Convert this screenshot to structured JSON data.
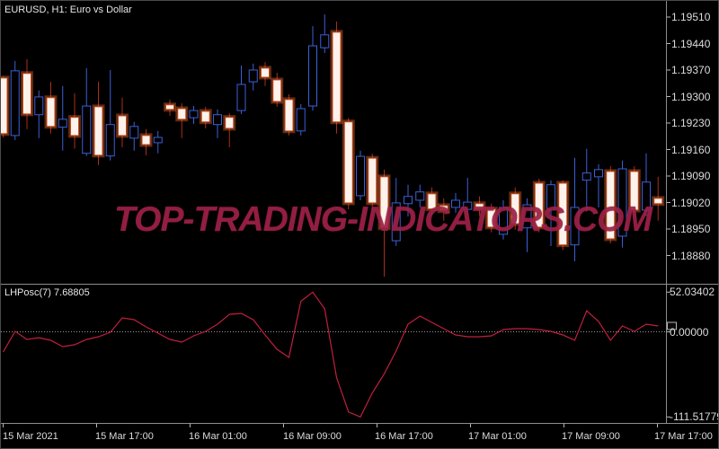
{
  "main": {
    "title": "EURUSD, H1: Euro vs Dollar"
  },
  "indicator": {
    "label": "LHPosc(7) 7.68805"
  },
  "watermark": {
    "text": "TOP-TRADING-INDICATORS.COM"
  },
  "colors": {
    "background": "#000000",
    "frame": "#8c8c8c",
    "tick": "#b5b5b5",
    "axis_text": "#dcdcdc",
    "bull": "#3c5fd6",
    "bear_fill": "#fdf3ec",
    "bear_border": "#c44a1c",
    "bear_wick": "#aa2f15",
    "bear_glow": "rgba(255,110,50,0.38)",
    "indicator_line": "#c11f3e",
    "zero_line": "#999999",
    "watermark": "#9e2147"
  },
  "chart_data": [
    {
      "type": "candlestick",
      "symbol": "EURUSD",
      "timeframe": "H1",
      "description": "Euro vs Dollar",
      "y_axis": {
        "labels": [
          "1.19510",
          "1.19440",
          "1.19370",
          "1.19300",
          "1.19230",
          "1.19160",
          "1.19090",
          "1.19020",
          "1.18950",
          "1.18880"
        ],
        "max": 1.1951,
        "min": 1.1888,
        "tick_step": 0.0007
      },
      "x_axis": {
        "labels": [
          "15 Mar 2021",
          "15 Mar 17:00",
          "16 Mar 01:00",
          "16 Mar 09:00",
          "16 Mar 17:00",
          "17 Mar 01:00",
          "17 Mar 09:00",
          "17 Mar 17:00"
        ]
      },
      "grid": false,
      "candles": [
        [
          1.19349,
          1.19353,
          1.19192,
          1.19202
        ],
        [
          1.19197,
          1.19394,
          1.19185,
          1.19368
        ],
        [
          1.19361,
          1.19399,
          1.19214,
          1.19254
        ],
        [
          1.19252,
          1.19316,
          1.1919,
          1.19299
        ],
        [
          1.19297,
          1.19339,
          1.19202,
          1.19221
        ],
        [
          1.19219,
          1.19328,
          1.19157,
          1.1924
        ],
        [
          1.19245,
          1.19309,
          1.19162,
          1.19197
        ],
        [
          1.1915,
          1.19375,
          1.19143,
          1.19275
        ],
        [
          1.19273,
          1.19339,
          1.19119,
          1.19145
        ],
        [
          1.19143,
          1.1937,
          1.19131,
          1.19226
        ],
        [
          1.19249,
          1.19297,
          1.19166,
          1.19197
        ],
        [
          1.1919,
          1.19233,
          1.19157,
          1.19221
        ],
        [
          1.19197,
          1.19214,
          1.19145,
          1.19173
        ],
        [
          1.19178,
          1.19209,
          1.1915,
          1.19192
        ],
        [
          1.19278,
          1.19292,
          1.19249,
          1.19266
        ],
        [
          1.19268,
          1.19282,
          1.1919,
          1.1924
        ],
        [
          1.19244,
          1.19275,
          1.19228,
          1.19263
        ],
        [
          1.19261,
          1.19273,
          1.19216,
          1.19233
        ],
        [
          1.19226,
          1.19266,
          1.1919,
          1.19252
        ],
        [
          1.19245,
          1.19256,
          1.19166,
          1.19216
        ],
        [
          1.19263,
          1.19382,
          1.19254,
          1.19332
        ],
        [
          1.19339,
          1.19387,
          1.19316,
          1.1937
        ],
        [
          1.19375,
          1.19391,
          1.19328,
          1.19351
        ],
        [
          1.19344,
          1.19363,
          1.19273,
          1.19287
        ],
        [
          1.19292,
          1.19306,
          1.19197,
          1.19209
        ],
        [
          1.19209,
          1.1928,
          1.19197,
          1.19268
        ],
        [
          1.19275,
          1.19486,
          1.19263,
          1.19434
        ],
        [
          1.19429,
          1.19517,
          1.19415,
          1.19463
        ],
        [
          1.1947,
          1.19498,
          1.19202,
          1.19233
        ],
        [
          1.19233,
          1.19244,
          1.19002,
          1.19019
        ],
        [
          1.19038,
          1.19157,
          1.19026,
          1.19142
        ],
        [
          1.19137,
          1.19149,
          1.19002,
          1.19019
        ],
        [
          1.19088,
          1.19107,
          1.18824,
          1.18953
        ],
        [
          1.18919,
          1.19085,
          1.18905,
          1.19019
        ],
        [
          1.19017,
          1.19067,
          1.18983,
          1.19036
        ],
        [
          1.19026,
          1.19067,
          1.19007,
          1.19048
        ],
        [
          1.19043,
          1.1906,
          1.18988,
          1.19003
        ],
        [
          1.19012,
          1.19031,
          1.18972,
          1.18998
        ],
        [
          1.19007,
          1.19045,
          1.18993,
          1.19026
        ],
        [
          1.19002,
          1.19085,
          1.18988,
          1.19021
        ],
        [
          1.19017,
          1.19036,
          1.18984,
          1.19003
        ],
        [
          1.19003,
          1.19017,
          1.18941,
          1.18955
        ],
        [
          1.18936,
          1.19026,
          1.18922,
          1.19007
        ],
        [
          1.19043,
          1.1906,
          1.18948,
          1.18964
        ],
        [
          1.18953,
          1.19031,
          1.18889,
          1.19014
        ],
        [
          1.19071,
          1.19083,
          1.18941,
          1.18955
        ],
        [
          1.19,
          1.19078,
          1.18905,
          1.19067
        ],
        [
          1.19071,
          1.19078,
          1.18894,
          1.18908
        ],
        [
          1.18908,
          1.19138,
          1.18865,
          1.19007
        ],
        [
          1.19079,
          1.19162,
          1.18996,
          1.19098
        ],
        [
          1.19088,
          1.19121,
          1.19007,
          1.19107
        ],
        [
          1.19102,
          1.19116,
          1.18912,
          1.18924
        ],
        [
          1.18931,
          1.19131,
          1.18901,
          1.19109
        ],
        [
          1.19102,
          1.19116,
          1.18984,
          1.19
        ],
        [
          1.19,
          1.1915,
          1.18984,
          1.19074
        ],
        [
          1.19031,
          1.19088,
          1.18972,
          1.19017
        ]
      ]
    },
    {
      "type": "line",
      "name": "LHPosc",
      "period": 7,
      "current_value": 7.68805,
      "y_axis": {
        "labels": [
          "52.03402",
          "0.00000",
          "-111.51779"
        ],
        "max": 52.03402,
        "zero": 0,
        "min": -111.51779
      },
      "zero_line_style": "dotted",
      "values": [
        -26.5,
        0.6,
        -10.0,
        -7.6,
        -11.2,
        -19.4,
        -17.0,
        -10.0,
        -6.5,
        -0.6,
        18.2,
        15.9,
        6.5,
        -1.8,
        -10.0,
        -13.5,
        -5.3,
        0.6,
        10.0,
        22.9,
        24.1,
        15.9,
        -4.1,
        -22.9,
        -33.5,
        40.0,
        52.03402,
        30.0,
        -60.0,
        -105.0,
        -111.51779,
        -80.0,
        -55.0,
        -25.0,
        10.0,
        20.6,
        12.4,
        4.1,
        -4.1,
        -6.5,
        -6.5,
        -5.3,
        2.9,
        4.1,
        4.1,
        2.9,
        0.6,
        -4.1,
        -11.2,
        27.6,
        13.5,
        -11.2,
        7.6,
        0.6,
        10.0,
        7.68805
      ]
    }
  ]
}
